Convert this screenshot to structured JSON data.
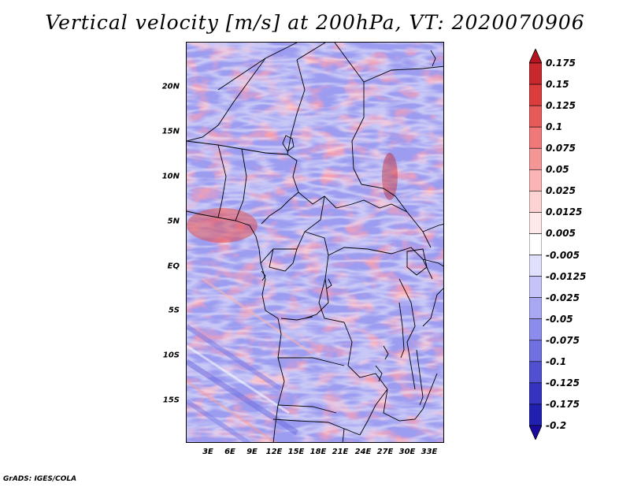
{
  "title": "Vertical velocity [m/s] at 200hPa, VT: 2020070906",
  "footer": "GrADS: IGES/COLA",
  "map": {
    "region": "Central Africa",
    "lon_range": [
      0,
      35
    ],
    "lat_range": [
      -20,
      25
    ],
    "lat_ticks": [
      "20N",
      "15N",
      "10N",
      "5N",
      "EQ",
      "5S",
      "10S",
      "15S"
    ],
    "lat_values": [
      20,
      15,
      10,
      5,
      0,
      -5,
      -10,
      -15
    ],
    "lon_ticks": [
      "3E",
      "6E",
      "9E",
      "12E",
      "15E",
      "18E",
      "21E",
      "24E",
      "27E",
      "30E",
      "33E"
    ],
    "lon_values": [
      3,
      6,
      9,
      12,
      15,
      18,
      21,
      24,
      27,
      30,
      33
    ]
  },
  "colorbar": {
    "labels": [
      "0.175",
      "0.15",
      "0.125",
      "0.1",
      "0.075",
      "0.05",
      "0.025",
      "0.0125",
      "0.005",
      "-0.005",
      "-0.0125",
      "-0.025",
      "-0.05",
      "-0.075",
      "-0.1",
      "-0.125",
      "-0.175",
      "-0.2"
    ],
    "colors": [
      "#b4141e",
      "#c8282d",
      "#dc3c3c",
      "#e65a5a",
      "#f07878",
      "#f59696",
      "#fab4b4",
      "#fcd2d2",
      "#fee8e8",
      "#ffffff",
      "#e0e0fc",
      "#c4c4f8",
      "#a8a8f2",
      "#8c8cec",
      "#7070e0",
      "#5050d0",
      "#3434c0",
      "#2020b0",
      "#1a0aa0"
    ]
  }
}
